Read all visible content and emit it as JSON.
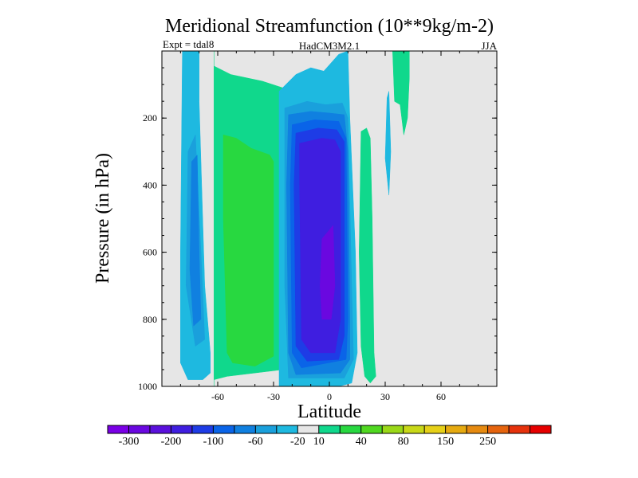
{
  "chart_data": {
    "type": "contour",
    "title": "Meridional Streamfunction (10**9kg/m-2)",
    "subtitle_left": "Expt = tdal8",
    "subtitle_center": "HadCM3M2.1",
    "subtitle_right": "JJA",
    "xlabel": "Latitude",
    "ylabel": "Pressure (in hPa)",
    "xlim": [
      -90,
      90
    ],
    "ylim": [
      1000,
      0
    ],
    "x_ticks": [
      -60,
      -30,
      0,
      30,
      60
    ],
    "y_ticks": [
      200,
      400,
      600,
      800,
      1000
    ],
    "colorbar": {
      "colors": [
        "#7a00e6",
        "#6a08e0",
        "#5a10dc",
        "#3f1ee0",
        "#1e3ce6",
        "#0a64e8",
        "#1080e0",
        "#1aa0dc",
        "#1eb9e0",
        "#e6e6e6",
        "#10d88c",
        "#28d840",
        "#50d820",
        "#9ad818",
        "#c8d818",
        "#e6d018",
        "#e6aa10",
        "#e68a10",
        "#e6640e",
        "#e6320c",
        "#e60000"
      ],
      "labels": [
        "-300",
        "-200",
        "-100",
        "-60",
        "-20",
        "10",
        "40",
        "80",
        "150",
        "250"
      ],
      "label_boundaries": [
        1,
        3,
        5,
        7,
        9,
        10,
        12,
        14,
        16,
        18
      ]
    },
    "regions": [
      {
        "level": 10,
        "color": "#10d88c",
        "pts": [
          [
            -62,
            0
          ],
          [
            -62,
            45
          ],
          [
            -53,
            70
          ],
          [
            -36,
            90
          ],
          [
            -25,
            110
          ],
          [
            -25,
            950
          ],
          [
            -55,
            970
          ],
          [
            -62,
            980
          ],
          [
            -62,
            1000
          ]
        ]
      },
      {
        "level": 10,
        "color": "#10d88c",
        "pts": [
          [
            17,
            240
          ],
          [
            20,
            230
          ],
          [
            22,
            260
          ],
          [
            23,
            500
          ],
          [
            24,
            900
          ],
          [
            25,
            970
          ],
          [
            22,
            990
          ],
          [
            19,
            970
          ],
          [
            17,
            880
          ],
          [
            16,
            600
          ]
        ]
      },
      {
        "level": 10,
        "color": "#10d88c",
        "pts": [
          [
            34,
            0
          ],
          [
            43,
            0
          ],
          [
            43,
            80
          ],
          [
            42,
            200
          ],
          [
            40,
            250
          ],
          [
            38,
            160
          ],
          [
            35,
            150
          ]
        ]
      },
      {
        "level": 40,
        "color": "#28d840",
        "pts": [
          [
            -57,
            250
          ],
          [
            -50,
            260
          ],
          [
            -42,
            290
          ],
          [
            -32,
            310
          ],
          [
            -30,
            330
          ],
          [
            -30,
            910
          ],
          [
            -40,
            940
          ],
          [
            -52,
            930
          ],
          [
            -55,
            900
          ],
          [
            -57,
            500
          ]
        ]
      },
      {
        "level": -20,
        "color": "#1eb9e0",
        "pts": [
          [
            -79,
            0
          ],
          [
            -70,
            0
          ],
          [
            -70,
            150
          ],
          [
            -67,
            700
          ],
          [
            -64,
            900
          ],
          [
            -64,
            960
          ],
          [
            -68,
            980
          ],
          [
            -76,
            980
          ],
          [
            -80,
            930
          ],
          [
            -80,
            600
          ]
        ]
      },
      {
        "level": -20,
        "color": "#1eb9e0",
        "pts": [
          [
            -27,
            120
          ],
          [
            -18,
            70
          ],
          [
            -10,
            50
          ],
          [
            -3,
            60
          ],
          [
            5,
            10
          ],
          [
            10,
            0
          ],
          [
            11,
            200
          ],
          [
            14,
            600
          ],
          [
            15,
            900
          ],
          [
            12,
            990
          ],
          [
            5,
            1000
          ],
          [
            -27,
            1000
          ]
        ]
      },
      {
        "level": -20,
        "color": "#1eb9e0",
        "pts": [
          [
            31,
            140
          ],
          [
            32,
            120
          ],
          [
            33,
            300
          ],
          [
            32,
            430
          ],
          [
            30,
            320
          ]
        ]
      },
      {
        "level": -60,
        "color": "#1aa0dc",
        "pts": [
          [
            -76,
            300
          ],
          [
            -72,
            250
          ],
          [
            -69,
            600
          ],
          [
            -67,
            860
          ],
          [
            -72,
            880
          ],
          [
            -77,
            700
          ]
        ]
      },
      {
        "level": -60,
        "color": "#1aa0dc",
        "pts": [
          [
            -24,
            170
          ],
          [
            -12,
            150
          ],
          [
            -2,
            160
          ],
          [
            7,
            155
          ],
          [
            10,
            200
          ],
          [
            12,
            700
          ],
          [
            13,
            920
          ],
          [
            8,
            975
          ],
          [
            -22,
            975
          ],
          [
            -24,
            700
          ]
        ]
      },
      {
        "level": -100,
        "color": "#1080e0",
        "pts": [
          [
            -74,
            330
          ],
          [
            -71,
            310
          ],
          [
            -70,
            600
          ],
          [
            -69,
            800
          ],
          [
            -73,
            820
          ],
          [
            -75,
            650
          ]
        ]
      },
      {
        "level": -100,
        "color": "#1080e0",
        "pts": [
          [
            -22,
            190
          ],
          [
            -10,
            180
          ],
          [
            0,
            185
          ],
          [
            8,
            190
          ],
          [
            10,
            300
          ],
          [
            11,
            800
          ],
          [
            11,
            920
          ],
          [
            6,
            960
          ],
          [
            -18,
            965
          ],
          [
            -22,
            900
          ],
          [
            -23,
            400
          ]
        ]
      },
      {
        "level": -150,
        "color": "#0a64e8",
        "pts": [
          [
            -20,
            220
          ],
          [
            -8,
            205
          ],
          [
            5,
            210
          ],
          [
            9,
            260
          ],
          [
            10,
            800
          ],
          [
            9,
            920
          ],
          [
            -15,
            945
          ],
          [
            -20,
            900
          ],
          [
            -21,
            400
          ]
        ]
      },
      {
        "level": -200,
        "color": "#1e3ce6",
        "pts": [
          [
            -18,
            245
          ],
          [
            -6,
            230
          ],
          [
            4,
            235
          ],
          [
            8,
            270
          ],
          [
            8,
            850
          ],
          [
            5,
            920
          ],
          [
            -12,
            925
          ],
          [
            -18,
            880
          ],
          [
            -19,
            400
          ]
        ]
      },
      {
        "level": -250,
        "color": "#3f1ee0",
        "pts": [
          [
            -16,
            275
          ],
          [
            -4,
            260
          ],
          [
            3,
            265
          ],
          [
            6,
            300
          ],
          [
            6,
            800
          ],
          [
            3,
            900
          ],
          [
            -10,
            900
          ],
          [
            -15,
            860
          ],
          [
            -16,
            400
          ]
        ]
      },
      {
        "level": -300,
        "color": "#6a08e0",
        "pts": [
          [
            -4,
            560
          ],
          [
            2,
            520
          ],
          [
            3,
            700
          ],
          [
            1,
            800
          ],
          [
            -4,
            800
          ],
          [
            -5,
            700
          ]
        ]
      }
    ]
  }
}
